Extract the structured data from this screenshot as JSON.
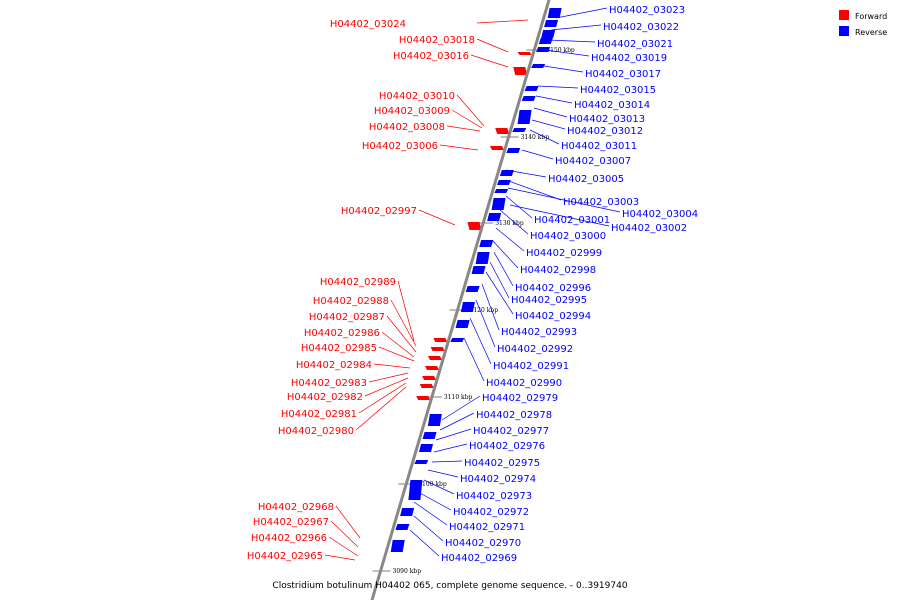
{
  "caption": "Clostridium botulinum H04402 065, complete genome sequence. - 0..3919740",
  "legend": [
    {
      "label": "Forward",
      "color": "#ff0000"
    },
    {
      "label": "Reverse",
      "color": "#0000ff"
    }
  ],
  "colors": {
    "forward": "#ff0000",
    "reverse": "#0000ff",
    "axis": "#888888",
    "ticks": "#000000"
  },
  "scale_ticks": [
    "3150 kbp",
    "3140 kbp",
    "3130 kbp",
    "3120 kbp",
    "3110 kbp",
    "3100 kbp",
    "3090 kbp"
  ],
  "forward_genes": [
    "H04402_03024",
    "H04402_03018",
    "H04402_03016",
    "H04402_03010",
    "H04402_03009",
    "H04402_03008",
    "H04402_03006",
    "H04402_02997",
    "H04402_02989",
    "H04402_02988",
    "H04402_02987",
    "H04402_02986",
    "H04402_02985",
    "H04402_02984",
    "H04402_02983",
    "H04402_02982",
    "H04402_02981",
    "H04402_02980",
    "H04402_02968",
    "H04402_02967",
    "H04402_02966",
    "H04402_02965"
  ],
  "reverse_genes": [
    "H04402_03023",
    "H04402_03022",
    "H04402_03021",
    "H04402_03019",
    "H04402_03017",
    "H04402_03015",
    "H04402_03014",
    "H04402_03013",
    "H04402_03012",
    "H04402_03011",
    "H04402_03007",
    "H04402_03005",
    "H04402_03003",
    "H04402_03004",
    "H04402_03001",
    "H04402_03002",
    "H04402_03000",
    "H04402_02999",
    "H04402_02998",
    "H04402_02996",
    "H04402_02995",
    "H04402_02994",
    "H04402_02993",
    "H04402_02992",
    "H04402_02991",
    "H04402_02990",
    "H04402_02979",
    "H04402_02978",
    "H04402_02977",
    "H04402_02976",
    "H04402_02975",
    "H04402_02974",
    "H04402_02973",
    "H04402_02972",
    "H04402_02971",
    "H04402_02970",
    "H04402_02969"
  ]
}
